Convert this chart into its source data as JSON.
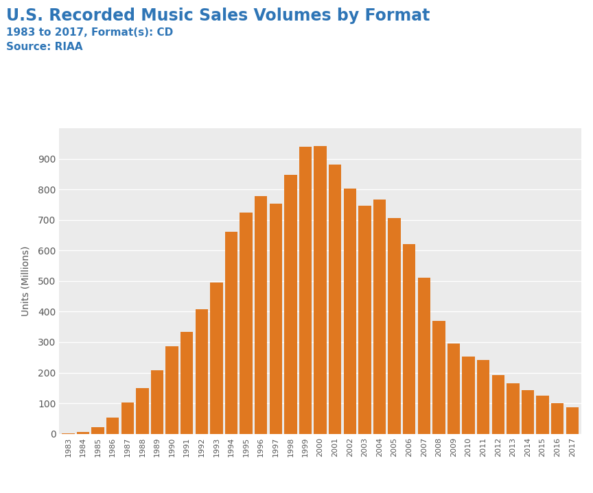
{
  "title": "U.S. Recorded Music Sales Volumes by Format",
  "subtitle": "1983 to 2017, Format(s): CD",
  "source": "Source: RIAA",
  "ylabel": "Units (Millions)",
  "title_color": "#2E75B6",
  "subtitle_color": "#2E75B6",
  "source_color": "#2E75B6",
  "bar_color": "#E07820",
  "bg_color": "#EBEBEB",
  "outer_bg": "#FFFFFF",
  "years": [
    1983,
    1984,
    1985,
    1986,
    1987,
    1988,
    1989,
    1990,
    1991,
    1992,
    1993,
    1994,
    1995,
    1996,
    1997,
    1998,
    1999,
    2000,
    2001,
    2002,
    2003,
    2004,
    2005,
    2006,
    2007,
    2008,
    2009,
    2010,
    2011,
    2012,
    2013,
    2014,
    2015,
    2016,
    2017
  ],
  "values": [
    0.8,
    5.8,
    22.6,
    53.0,
    102.1,
    149.7,
    207.2,
    286.5,
    333.3,
    407.5,
    495.4,
    662.1,
    722.9,
    778.9,
    753.1,
    847.0,
    938.9,
    942.5,
    881.9,
    803.3,
    745.9,
    767.0,
    705.4,
    619.7,
    511.1,
    368.4,
    296.6,
    253.0,
    240.8,
    193.0,
    165.4,
    143.8,
    125.7,
    99.4,
    87.7
  ],
  "ylim": [
    0,
    1000
  ],
  "yticks": [
    0,
    100,
    200,
    300,
    400,
    500,
    600,
    700,
    800,
    900
  ],
  "title_fontsize": 17,
  "subtitle_fontsize": 11,
  "source_fontsize": 11,
  "ylabel_fontsize": 10,
  "xtick_fontsize": 8,
  "ytick_fontsize": 10
}
